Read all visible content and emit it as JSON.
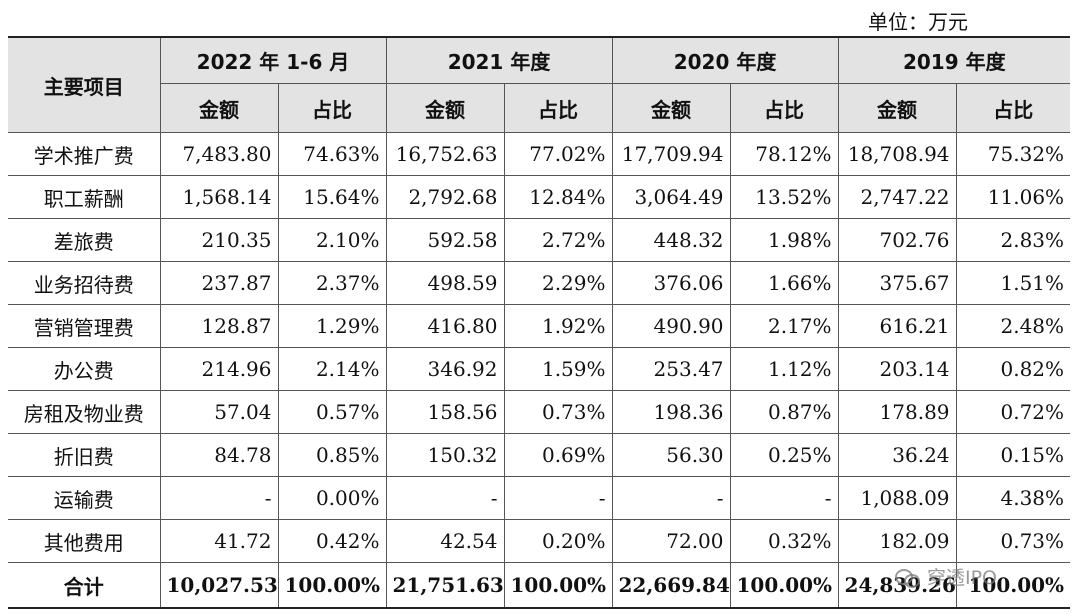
{
  "unit_label": "单位：万元",
  "header": {
    "item_label": "主要项目",
    "periods": [
      "2022 年 1-6 月",
      "2021 年度",
      "2020 年度",
      "2019 年度"
    ],
    "amount_label": "金额",
    "ratio_label": "占比"
  },
  "rows": [
    {
      "label": "学术推广费",
      "values": [
        "7,483.80",
        "74.63%",
        "16,752.63",
        "77.02%",
        "17,709.94",
        "78.12%",
        "18,708.94",
        "75.32%"
      ]
    },
    {
      "label": "职工薪酬",
      "values": [
        "1,568.14",
        "15.64%",
        "2,792.68",
        "12.84%",
        "3,064.49",
        "13.52%",
        "2,747.22",
        "11.06%"
      ]
    },
    {
      "label": "差旅费",
      "values": [
        "210.35",
        "2.10%",
        "592.58",
        "2.72%",
        "448.32",
        "1.98%",
        "702.76",
        "2.83%"
      ]
    },
    {
      "label": "业务招待费",
      "values": [
        "237.87",
        "2.37%",
        "498.59",
        "2.29%",
        "376.06",
        "1.66%",
        "375.67",
        "1.51%"
      ]
    },
    {
      "label": "营销管理费",
      "values": [
        "128.87",
        "1.29%",
        "416.80",
        "1.92%",
        "490.90",
        "2.17%",
        "616.21",
        "2.48%"
      ]
    },
    {
      "label": "办公费",
      "values": [
        "214.96",
        "2.14%",
        "346.92",
        "1.59%",
        "253.47",
        "1.12%",
        "203.14",
        "0.82%"
      ]
    },
    {
      "label": "房租及物业费",
      "values": [
        "57.04",
        "0.57%",
        "158.56",
        "0.73%",
        "198.36",
        "0.87%",
        "178.89",
        "0.72%"
      ]
    },
    {
      "label": "折旧费",
      "values": [
        "84.78",
        "0.85%",
        "150.32",
        "0.69%",
        "56.30",
        "0.25%",
        "36.24",
        "0.15%"
      ]
    },
    {
      "label": "运输费",
      "values": [
        "-",
        "0.00%",
        "-",
        "-",
        "-",
        "-",
        "1,088.09",
        "4.38%"
      ]
    },
    {
      "label": "其他费用",
      "values": [
        "41.72",
        "0.42%",
        "42.54",
        "0.20%",
        "72.00",
        "0.32%",
        "182.09",
        "0.73%"
      ]
    }
  ],
  "total": {
    "label": "合计",
    "values": [
      "10,027.53",
      "100.00%",
      "21,751.63",
      "100.00%",
      "22,669.84",
      "100.00%",
      "24,839.26",
      "100.00%"
    ]
  },
  "watermark": "穿透IPO"
}
